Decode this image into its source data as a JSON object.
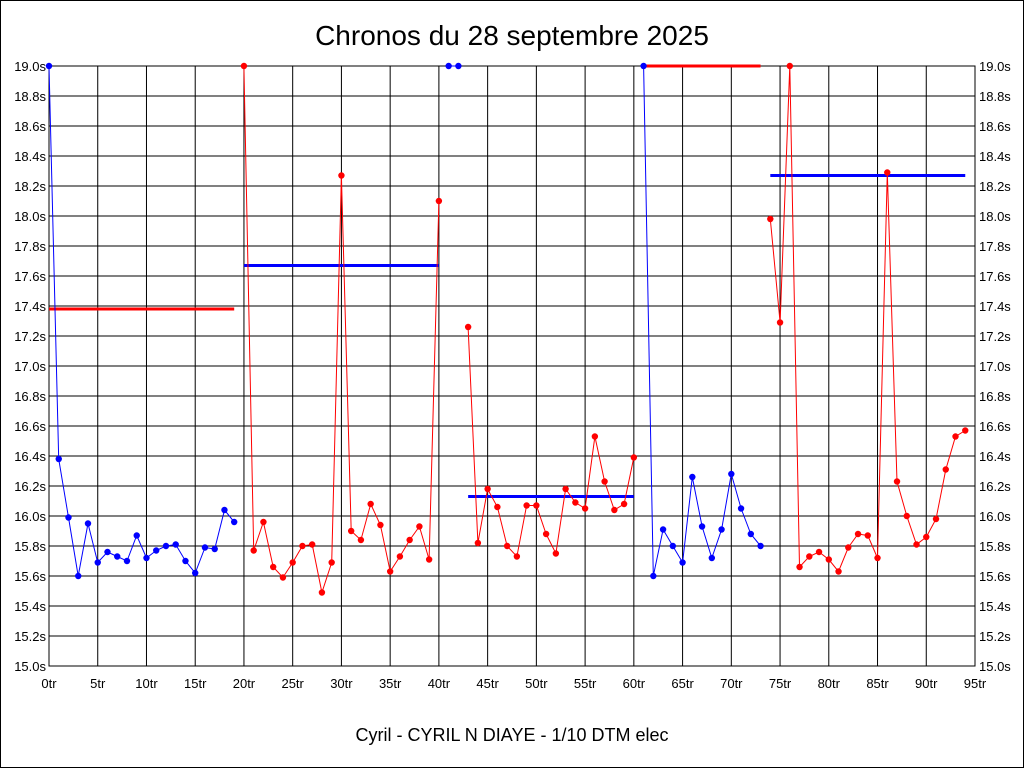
{
  "chart_data": {
    "type": "line",
    "title": "Chronos du 28 septembre 2025",
    "subtitle": "Cyril - CYRIL N DIAYE - 1/10 DTM elec",
    "grid": true,
    "x_range": [
      0,
      95
    ],
    "y_range": [
      15.0,
      19.0
    ],
    "x_ticks": [
      {
        "value": 0,
        "label": "0tr"
      },
      {
        "value": 5,
        "label": "5tr"
      },
      {
        "value": 10,
        "label": "10tr"
      },
      {
        "value": 15,
        "label": "15tr"
      },
      {
        "value": 20,
        "label": "20tr"
      },
      {
        "value": 25,
        "label": "25tr"
      },
      {
        "value": 30,
        "label": "30tr"
      },
      {
        "value": 35,
        "label": "35tr"
      },
      {
        "value": 40,
        "label": "40tr"
      },
      {
        "value": 45,
        "label": "45tr"
      },
      {
        "value": 50,
        "label": "50tr"
      },
      {
        "value": 55,
        "label": "55tr"
      },
      {
        "value": 60,
        "label": "60tr"
      },
      {
        "value": 65,
        "label": "65tr"
      },
      {
        "value": 70,
        "label": "70tr"
      },
      {
        "value": 75,
        "label": "75tr"
      },
      {
        "value": 80,
        "label": "80tr"
      },
      {
        "value": 85,
        "label": "85tr"
      },
      {
        "value": 90,
        "label": "90tr"
      },
      {
        "value": 95,
        "label": "95tr"
      }
    ],
    "y_ticks": [
      {
        "value": 15.0,
        "label": "15.0s"
      },
      {
        "value": 15.2,
        "label": "15.2s"
      },
      {
        "value": 15.4,
        "label": "15.4s"
      },
      {
        "value": 15.6,
        "label": "15.6s"
      },
      {
        "value": 15.8,
        "label": "15.8s"
      },
      {
        "value": 16.0,
        "label": "16.0s"
      },
      {
        "value": 16.2,
        "label": "16.2s"
      },
      {
        "value": 16.4,
        "label": "16.4s"
      },
      {
        "value": 16.6,
        "label": "16.6s"
      },
      {
        "value": 16.8,
        "label": "16.8s"
      },
      {
        "value": 17.0,
        "label": "17.0s"
      },
      {
        "value": 17.2,
        "label": "17.2s"
      },
      {
        "value": 17.4,
        "label": "17.4s"
      },
      {
        "value": 17.6,
        "label": "17.6s"
      },
      {
        "value": 17.8,
        "label": "17.8s"
      },
      {
        "value": 18.0,
        "label": "18.0s"
      },
      {
        "value": 18.2,
        "label": "18.2s"
      },
      {
        "value": 18.4,
        "label": "18.4s"
      },
      {
        "value": 18.6,
        "label": "18.6s"
      },
      {
        "value": 18.8,
        "label": "18.8s"
      },
      {
        "value": 19.0,
        "label": "19.0s"
      }
    ],
    "series": [
      {
        "color": "#0000ff",
        "points": [
          [
            0,
            19.0
          ],
          [
            1,
            16.38
          ],
          [
            2,
            15.99
          ],
          [
            3,
            15.6
          ],
          [
            4,
            15.95
          ],
          [
            5,
            15.69
          ],
          [
            6,
            15.76
          ],
          [
            7,
            15.73
          ],
          [
            8,
            15.7
          ],
          [
            9,
            15.87
          ],
          [
            10,
            15.72
          ],
          [
            11,
            15.77
          ],
          [
            12,
            15.8
          ],
          [
            13,
            15.81
          ],
          [
            14,
            15.7
          ],
          [
            15,
            15.62
          ],
          [
            16,
            15.79
          ],
          [
            17,
            15.78
          ],
          [
            18,
            16.04
          ],
          [
            19,
            15.96
          ]
        ]
      },
      {
        "color": "#ff0000",
        "points": [
          [
            20,
            19.0
          ],
          [
            21,
            15.77
          ],
          [
            22,
            15.96
          ],
          [
            23,
            15.66
          ],
          [
            24,
            15.59
          ],
          [
            25,
            15.69
          ],
          [
            26,
            15.8
          ],
          [
            27,
            15.81
          ],
          [
            28,
            15.49
          ],
          [
            29,
            15.69
          ],
          [
            30,
            18.27
          ],
          [
            31,
            15.9
          ],
          [
            32,
            15.84
          ],
          [
            33,
            16.08
          ],
          [
            34,
            15.94
          ],
          [
            35,
            15.63
          ],
          [
            36,
            15.73
          ],
          [
            37,
            15.84
          ],
          [
            38,
            15.93
          ],
          [
            39,
            15.71
          ],
          [
            40,
            18.1
          ]
        ]
      },
      {
        "color": "#0000ff",
        "points": [
          [
            41,
            19.0
          ],
          [
            42,
            19.0
          ]
        ]
      },
      {
        "color": "#ff0000",
        "points": [
          [
            43,
            17.26
          ],
          [
            44,
            15.82
          ],
          [
            45,
            16.18
          ],
          [
            46,
            16.06
          ],
          [
            47,
            15.8
          ],
          [
            48,
            15.73
          ],
          [
            49,
            16.07
          ],
          [
            50,
            16.07
          ],
          [
            51,
            15.88
          ],
          [
            52,
            15.75
          ],
          [
            53,
            16.18
          ],
          [
            54,
            16.09
          ],
          [
            55,
            16.05
          ],
          [
            56,
            16.53
          ],
          [
            57,
            16.23
          ],
          [
            58,
            16.04
          ],
          [
            59,
            16.08
          ],
          [
            60,
            16.39
          ]
        ]
      },
      {
        "color": "#0000ff",
        "points": [
          [
            61,
            19.0
          ],
          [
            62,
            15.6
          ],
          [
            63,
            15.91
          ],
          [
            64,
            15.8
          ],
          [
            65,
            15.69
          ],
          [
            66,
            16.26
          ],
          [
            67,
            15.93
          ],
          [
            68,
            15.72
          ],
          [
            69,
            15.91
          ],
          [
            70,
            16.28
          ],
          [
            71,
            16.05
          ],
          [
            72,
            15.88
          ],
          [
            73,
            15.8
          ]
        ]
      },
      {
        "color": "#ff0000",
        "points": [
          [
            74,
            17.98
          ],
          [
            75,
            17.29
          ],
          [
            76,
            19.0
          ],
          [
            77,
            15.66
          ],
          [
            78,
            15.73
          ],
          [
            79,
            15.76
          ],
          [
            80,
            15.71
          ],
          [
            81,
            15.63
          ],
          [
            82,
            15.79
          ],
          [
            83,
            15.88
          ],
          [
            84,
            15.87
          ],
          [
            85,
            15.72
          ],
          [
            86,
            18.29
          ],
          [
            87,
            16.23
          ],
          [
            88,
            16.0
          ],
          [
            89,
            15.81
          ],
          [
            90,
            15.86
          ],
          [
            91,
            15.98
          ],
          [
            92,
            16.31
          ],
          [
            93,
            16.53
          ],
          [
            94,
            16.57
          ]
        ]
      }
    ],
    "averages": [
      {
        "color": "#ff0000",
        "x_start": 0,
        "x_end": 19,
        "value": 17.38
      },
      {
        "color": "#0000ff",
        "x_start": 20,
        "x_end": 40,
        "value": 17.67
      },
      {
        "color": "#0000ff",
        "x_start": 43,
        "x_end": 60,
        "value": 16.13
      },
      {
        "color": "#ff0000",
        "x_start": 61,
        "x_end": 73,
        "value": 19.0
      },
      {
        "color": "#0000ff",
        "x_start": 74,
        "x_end": 94,
        "value": 18.27
      }
    ]
  }
}
